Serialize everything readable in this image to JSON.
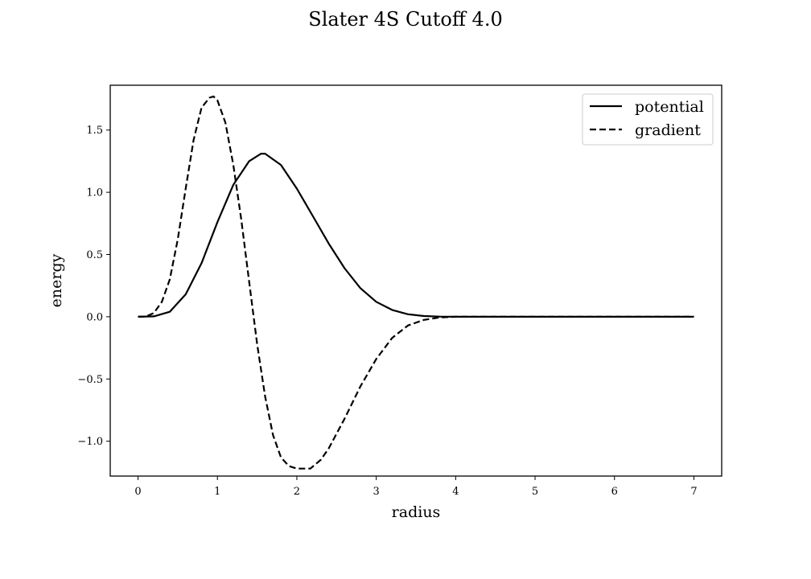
{
  "chart_data": {
    "type": "line",
    "title": "Slater 4S Cutoff 4.0",
    "xlabel": "radius",
    "ylabel": "energy",
    "xlim": [
      -0.35,
      7.35
    ],
    "ylim": [
      -1.28,
      1.86
    ],
    "xticks": [
      0,
      1,
      2,
      3,
      4,
      5,
      6,
      7
    ],
    "xtick_labels": [
      "0",
      "1",
      "2",
      "3",
      "4",
      "5",
      "6",
      "7"
    ],
    "yticks": [
      -1.0,
      -0.5,
      0.0,
      0.5,
      1.0,
      1.5
    ],
    "ytick_labels": [
      "−1.0",
      "−0.5",
      "0.0",
      "0.5",
      "1.0",
      "1.5"
    ],
    "grid": false,
    "legend_position": "upper-right",
    "series": [
      {
        "name": "potential",
        "style": "solid",
        "color": "#000000",
        "x": [
          0.0,
          0.2,
          0.4,
          0.6,
          0.8,
          1.0,
          1.2,
          1.4,
          1.55,
          1.6,
          1.8,
          2.0,
          2.2,
          2.4,
          2.6,
          2.8,
          3.0,
          3.2,
          3.4,
          3.6,
          3.8,
          4.0,
          4.5,
          5.0,
          6.0,
          7.0
        ],
        "y": [
          0.0,
          0.003,
          0.04,
          0.18,
          0.43,
          0.76,
          1.06,
          1.25,
          1.31,
          1.31,
          1.22,
          1.03,
          0.81,
          0.59,
          0.39,
          0.23,
          0.12,
          0.055,
          0.02,
          0.006,
          0.001,
          0.0,
          0.0,
          0.0,
          0.0,
          0.0
        ]
      },
      {
        "name": "gradient",
        "style": "dashed",
        "color": "#000000",
        "x": [
          0.0,
          0.1,
          0.2,
          0.3,
          0.4,
          0.5,
          0.6,
          0.7,
          0.8,
          0.9,
          0.95,
          1.0,
          1.1,
          1.2,
          1.3,
          1.4,
          1.5,
          1.6,
          1.7,
          1.8,
          1.9,
          2.0,
          2.1,
          2.17,
          2.3,
          2.4,
          2.6,
          2.8,
          3.0,
          3.2,
          3.4,
          3.6,
          3.8,
          4.0,
          5.0,
          6.0,
          7.0
        ],
        "y": [
          0.0,
          0.002,
          0.03,
          0.12,
          0.3,
          0.62,
          1.03,
          1.42,
          1.68,
          1.76,
          1.77,
          1.74,
          1.56,
          1.22,
          0.78,
          0.28,
          -0.22,
          -0.64,
          -0.95,
          -1.13,
          -1.2,
          -1.22,
          -1.22,
          -1.22,
          -1.15,
          -1.06,
          -0.82,
          -0.56,
          -0.34,
          -0.17,
          -0.07,
          -0.025,
          -0.005,
          0.0,
          0.0,
          0.0,
          0.0
        ]
      }
    ]
  }
}
